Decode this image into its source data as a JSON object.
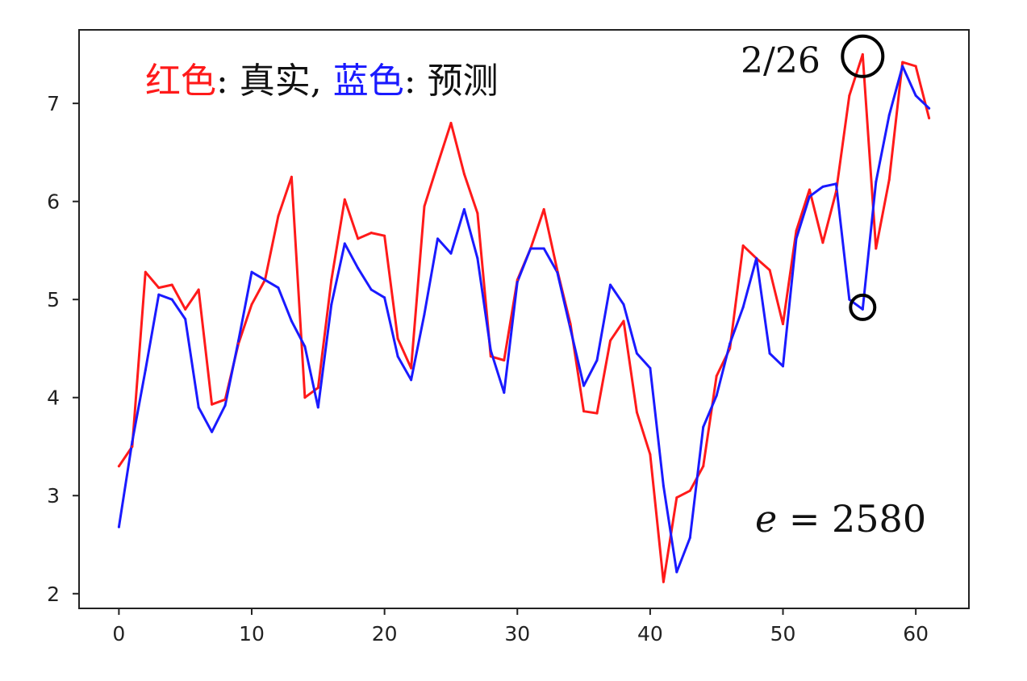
{
  "chart_data": {
    "type": "line",
    "title": "",
    "xlabel": "",
    "ylabel": "",
    "xlim": [
      -3,
      64
    ],
    "ylim": [
      1.85,
      7.75
    ],
    "xticks": [
      0,
      10,
      20,
      30,
      40,
      50,
      60
    ],
    "yticks": [
      2,
      3,
      4,
      5,
      6,
      7
    ],
    "grid": false,
    "x": [
      0,
      1,
      2,
      3,
      4,
      5,
      6,
      7,
      8,
      9,
      10,
      11,
      12,
      13,
      14,
      15,
      16,
      17,
      18,
      19,
      20,
      21,
      22,
      23,
      24,
      25,
      26,
      27,
      28,
      29,
      30,
      31,
      32,
      33,
      34,
      35,
      36,
      37,
      38,
      39,
      40,
      41,
      42,
      43,
      44,
      45,
      46,
      47,
      48,
      49,
      50,
      51,
      52,
      53,
      54,
      55,
      56,
      57,
      58,
      59,
      60,
      61
    ],
    "series": [
      {
        "name": "真实",
        "color": "#ff1a1a",
        "values": [
          3.3,
          3.5,
          5.28,
          5.12,
          5.15,
          4.9,
          5.1,
          3.93,
          3.98,
          4.55,
          4.95,
          5.2,
          5.85,
          6.25,
          4.0,
          4.1,
          5.2,
          6.02,
          5.62,
          5.68,
          5.65,
          4.6,
          4.3,
          5.95,
          6.38,
          6.8,
          6.28,
          5.88,
          4.42,
          4.38,
          5.2,
          5.52,
          5.92,
          5.3,
          4.75,
          3.86,
          3.84,
          4.58,
          4.78,
          3.85,
          3.42,
          2.12,
          2.98,
          3.05,
          3.3,
          4.22,
          4.5,
          5.55,
          5.42,
          5.3,
          4.75,
          5.7,
          6.12,
          5.58,
          6.1,
          7.08,
          7.5,
          5.52,
          6.22,
          7.42,
          7.38,
          6.85
        ]
      },
      {
        "name": "预测",
        "color": "#1a1aff",
        "values": [
          2.68,
          3.55,
          4.28,
          5.05,
          5.0,
          4.8,
          3.9,
          3.65,
          3.92,
          4.58,
          5.28,
          5.2,
          5.12,
          4.78,
          4.52,
          3.9,
          4.95,
          5.57,
          5.32,
          5.1,
          5.02,
          4.42,
          4.18,
          4.85,
          5.62,
          5.47,
          5.92,
          5.42,
          4.48,
          4.05,
          5.18,
          5.52,
          5.52,
          5.28,
          4.7,
          4.12,
          4.38,
          5.15,
          4.95,
          4.45,
          4.3,
          3.1,
          2.22,
          2.57,
          3.7,
          4.02,
          4.55,
          4.92,
          5.42,
          4.45,
          4.32,
          5.62,
          6.05,
          6.15,
          6.18,
          5.0,
          4.9,
          6.2,
          6.88,
          7.38,
          7.08,
          6.95
        ]
      }
    ],
    "legend": {
      "parts": [
        {
          "text": "红色",
          "color": "#ff1a1a"
        },
        {
          "text": ": 真实, ",
          "color": "#111111"
        },
        {
          "text": "蓝色",
          "color": "#1a1aff"
        },
        {
          "text": ": 预测",
          "color": "#111111"
        }
      ],
      "placement": "top-left"
    },
    "annotations": {
      "date": "2/26",
      "e_symbol": "e",
      "e_value": " = 2580",
      "circles": [
        {
          "x": 56,
          "y": 7.48
        },
        {
          "x": 56,
          "y": 4.92
        }
      ]
    }
  }
}
